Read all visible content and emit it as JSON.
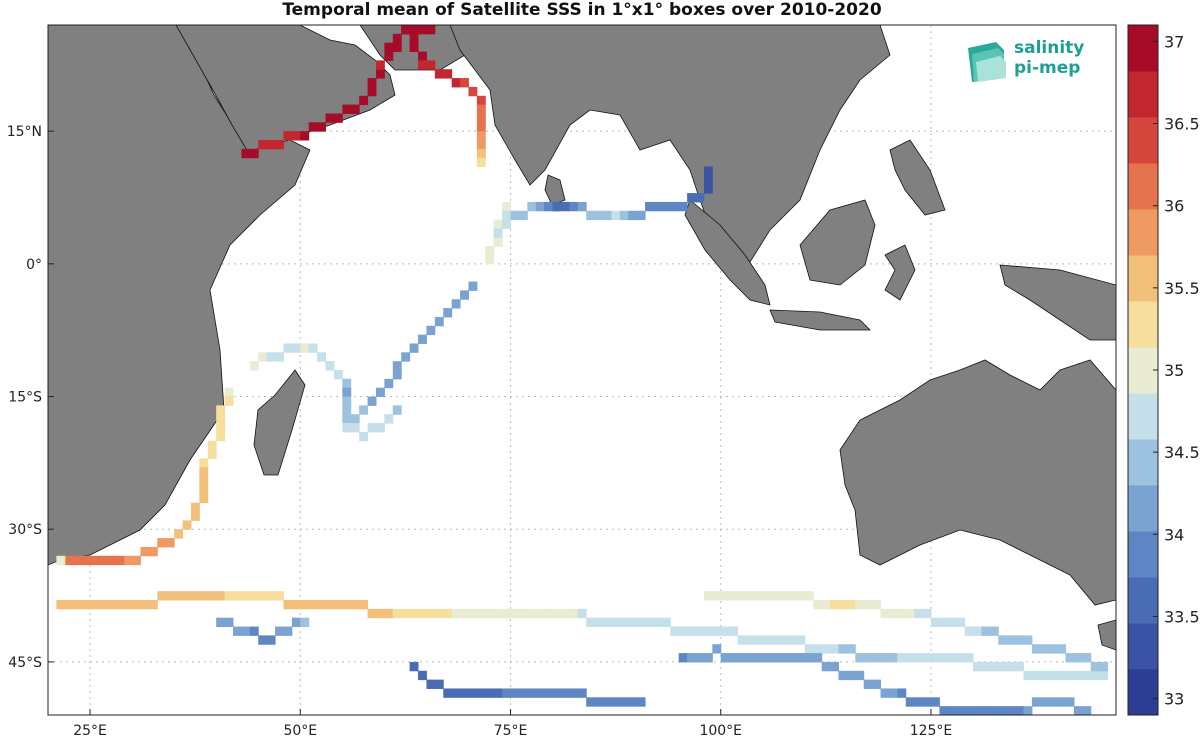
{
  "title": "Temporal mean of Satellite SSS in 1°x1° boxes over 2010-2020",
  "logo": {
    "line1": "salinity",
    "line2": "pi-mep"
  },
  "axes": {
    "lon_ticks": [
      {
        "value": 25,
        "label": "25°E"
      },
      {
        "value": 50,
        "label": "50°E"
      },
      {
        "value": 75,
        "label": "75°E"
      },
      {
        "value": 100,
        "label": "100°E"
      },
      {
        "value": 125,
        "label": "125°E"
      }
    ],
    "lat_ticks": [
      {
        "value": 15,
        "label": "15°N"
      },
      {
        "value": 0,
        "label": "0°"
      },
      {
        "value": -15,
        "label": "15°S"
      },
      {
        "value": -30,
        "label": "30°S"
      },
      {
        "value": -45,
        "label": "45°S"
      }
    ],
    "lon_range": [
      20,
      147
    ],
    "lat_range": [
      -51,
      27
    ]
  },
  "colorbar": {
    "min": 32.9,
    "max": 37.1,
    "ticks": [
      "33",
      "33.5",
      "34",
      "34.5",
      "35",
      "35.5",
      "36",
      "36.5",
      "37"
    ],
    "tick_values": [
      33,
      33.5,
      34,
      34.5,
      35,
      35.5,
      36,
      36.5,
      37
    ]
  },
  "tracks": [
    {
      "name": "red-sea-arabian",
      "points": [
        [
          43,
          12,
          36.9
        ],
        [
          45,
          12.5,
          36.8
        ],
        [
          47,
          13,
          36.7
        ],
        [
          49,
          14,
          36.8
        ],
        [
          51,
          14.5,
          36.9
        ],
        [
          53,
          15.5,
          37
        ],
        [
          55,
          16.5,
          37
        ],
        [
          57,
          18,
          36.9
        ],
        [
          58,
          20,
          36.9
        ],
        [
          59,
          22,
          36.8
        ],
        [
          60,
          23.5,
          36.9
        ],
        [
          61,
          25,
          37
        ],
        [
          62,
          25.5,
          37
        ],
        [
          63,
          24,
          36.9
        ],
        [
          64,
          22,
          36.8
        ],
        [
          66,
          21,
          36.7
        ],
        [
          68,
          20,
          36.6
        ],
        [
          70,
          19,
          36.4
        ],
        [
          71,
          17,
          36.2
        ],
        [
          71,
          15,
          36
        ],
        [
          70.5,
          13,
          35.8
        ],
        [
          70.5,
          11,
          35.3
        ]
      ]
    },
    {
      "name": "gulf-oman",
      "points": [
        [
          57,
          26.5,
          37
        ],
        [
          59,
          26.5,
          37
        ],
        [
          61,
          26.5,
          37
        ],
        [
          63,
          26,
          37
        ],
        [
          65,
          26,
          37
        ]
      ]
    },
    {
      "name": "bay-of-bengal",
      "points": [
        [
          74,
          6,
          34.9
        ],
        [
          73,
          4,
          34.9
        ],
        [
          72.5,
          2,
          34.8
        ],
        [
          72,
          0,
          35.1
        ],
        [
          74,
          5,
          34.6
        ],
        [
          76,
          5,
          34.5
        ],
        [
          78,
          6,
          34.2
        ],
        [
          79.5,
          6,
          33.8
        ],
        [
          81,
          5.5,
          33.6
        ],
        [
          83,
          5.5,
          34.3
        ],
        [
          85,
          5,
          34.5
        ],
        [
          87,
          5,
          34.6
        ],
        [
          89,
          5,
          34.3
        ],
        [
          91,
          5.5,
          34
        ],
        [
          93,
          5.5,
          33.8
        ],
        [
          95,
          6,
          33.8
        ],
        [
          97,
          7,
          33.5
        ],
        [
          98,
          9,
          33.4
        ],
        [
          98,
          10,
          33.2
        ]
      ]
    },
    {
      "name": "central-diagonal",
      "points": [
        [
          70,
          -3,
          34.3
        ],
        [
          68,
          -5,
          34.2
        ],
        [
          66,
          -7,
          34.2
        ],
        [
          64,
          -9,
          34.1
        ],
        [
          62,
          -11,
          34.1
        ],
        [
          60,
          -14,
          34.1
        ],
        [
          58,
          -16,
          34.2
        ],
        [
          56,
          -18,
          34.5
        ]
      ]
    },
    {
      "name": "madagascar-loop",
      "points": [
        [
          44,
          -12,
          35.1
        ],
        [
          46,
          -11,
          34.8
        ],
        [
          48,
          -10.5,
          34.7
        ],
        [
          50,
          -10,
          34.9
        ],
        [
          52,
          -11,
          34.8
        ],
        [
          54,
          -13,
          34.7
        ],
        [
          55,
          -15,
          34.3
        ],
        [
          55,
          -17,
          34.4
        ],
        [
          55,
          -19,
          34.6
        ],
        [
          57,
          -20,
          34.6
        ],
        [
          59,
          -19,
          34.7
        ],
        [
          61,
          -17,
          34.5
        ]
      ]
    },
    {
      "name": "mozambique-channel",
      "points": [
        [
          41,
          -15,
          35.1
        ],
        [
          40,
          -17,
          35.2
        ],
        [
          40,
          -19,
          35.2
        ],
        [
          39,
          -21,
          35.3
        ],
        [
          38,
          -23,
          35.4
        ],
        [
          38,
          -25,
          35.5
        ],
        [
          38,
          -27,
          35.5
        ],
        [
          36,
          -30,
          35.6
        ],
        [
          34,
          -32,
          35.7
        ],
        [
          32,
          -33,
          35.7
        ],
        [
          30,
          -34,
          35.9
        ],
        [
          28,
          -34.5,
          36
        ],
        [
          25,
          -34.5,
          36
        ],
        [
          22,
          -34,
          36.1
        ],
        [
          21,
          -34.5,
          35.1
        ]
      ]
    },
    {
      "name": "southern-ocean-1",
      "points": [
        [
          21,
          -39,
          35.6
        ],
        [
          25,
          -39,
          35.6
        ],
        [
          29,
          -39,
          35.5
        ],
        [
          33,
          -38.5,
          35.5
        ],
        [
          37,
          -38,
          35.5
        ],
        [
          41,
          -38,
          35.4
        ],
        [
          45,
          -38,
          35.3
        ],
        [
          49,
          -39,
          35.5
        ],
        [
          53,
          -39.5,
          35.6
        ],
        [
          57,
          -39.5,
          35.6
        ],
        [
          61,
          -40,
          35.4
        ],
        [
          65,
          -40,
          35.2
        ],
        [
          69,
          -40,
          35.1
        ],
        [
          73,
          -40,
          35
        ],
        [
          77,
          -40,
          35
        ],
        [
          81,
          -40,
          34.9
        ],
        [
          85,
          -41,
          34.8
        ],
        [
          89,
          -41,
          34.6
        ],
        [
          93,
          -41.5,
          34.6
        ],
        [
          97,
          -42,
          34.7
        ],
        [
          101,
          -42.5,
          34.8
        ],
        [
          105,
          -43,
          34.8
        ],
        [
          109,
          -43.5,
          34.7
        ],
        [
          113,
          -44,
          34.6
        ],
        [
          117,
          -45,
          34.5
        ],
        [
          121,
          -45,
          34.6
        ],
        [
          125,
          -45,
          34.6
        ],
        [
          129,
          -45.5,
          34.6
        ],
        [
          133,
          -46,
          34.6
        ],
        [
          137,
          -47,
          34.6
        ],
        [
          141,
          -47,
          34.6
        ],
        [
          145,
          -47.5,
          34.6
        ]
      ]
    },
    {
      "name": "southern-ocean-2",
      "points": [
        [
          98,
          -38.5,
          35
        ],
        [
          102,
          -38.5,
          35
        ],
        [
          106,
          -38,
          35.1
        ],
        [
          110,
          -38.5,
          35
        ],
        [
          114,
          -39,
          35.2
        ],
        [
          118,
          -39.5,
          35
        ],
        [
          122,
          -40,
          34.9
        ],
        [
          126,
          -41,
          34.7
        ],
        [
          130,
          -42,
          34.6
        ],
        [
          134,
          -43,
          34.5
        ],
        [
          138,
          -44,
          34.5
        ],
        [
          142,
          -45,
          34.4
        ],
        [
          145,
          -46,
          34.4
        ]
      ]
    },
    {
      "name": "southern-ocean-3",
      "points": [
        [
          40,
          -41,
          34.2
        ],
        [
          42,
          -42,
          34.1
        ],
        [
          44,
          -42.5,
          34
        ],
        [
          46,
          -43,
          33.9
        ],
        [
          48,
          -42,
          34.2
        ],
        [
          50,
          -41,
          34.4
        ]
      ]
    },
    {
      "name": "southern-ocean-4",
      "points": [
        [
          63,
          -46,
          33.6
        ],
        [
          65,
          -48,
          33.7
        ],
        [
          68,
          -49,
          33.7
        ],
        [
          72,
          -49,
          33.7
        ],
        [
          76,
          -49,
          33.8
        ],
        [
          80,
          -49,
          33.8
        ],
        [
          86,
          -50,
          33.9
        ],
        [
          90,
          -50,
          33.9
        ]
      ]
    },
    {
      "name": "southern-ocean-5",
      "points": [
        [
          95,
          -45,
          34
        ],
        [
          99,
          -44.5,
          34.2
        ],
        [
          103,
          -45,
          34.3
        ],
        [
          107,
          -45,
          34.2
        ],
        [
          111,
          -45.5,
          34.1
        ],
        [
          115,
          -47,
          34.2
        ],
        [
          119,
          -49,
          34.1
        ],
        [
          123,
          -50,
          33.9
        ],
        [
          127,
          -51,
          33.8
        ],
        [
          131,
          -51,
          33.9
        ],
        [
          135,
          -51,
          34
        ],
        [
          139,
          -50,
          34.2
        ],
        [
          143,
          -51,
          34.3
        ]
      ]
    }
  ]
}
